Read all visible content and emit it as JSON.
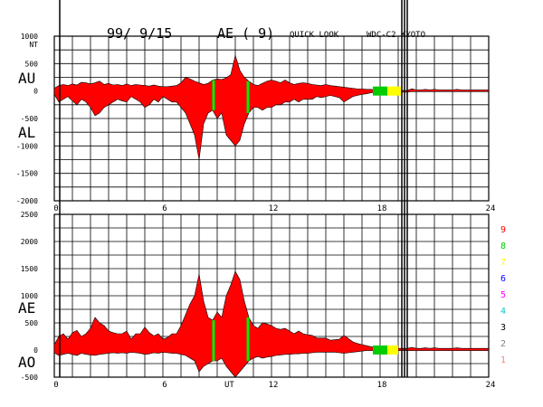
{
  "header": {
    "date": "99/ 9/15",
    "index": "AE ( 9)",
    "mode": "QUICK LOOK",
    "source": "WDC-C2 KYOTO"
  },
  "activity_scale": {
    "labels": [
      "9",
      "8",
      "7",
      "6",
      "5",
      "4",
      "3",
      "2",
      "1"
    ],
    "colors": [
      "#ff0000",
      "#00cc00",
      "#ffff00",
      "#0000ff",
      "#ff00ff",
      "#00cccc",
      "#000000",
      "#808080",
      "#ff8080"
    ]
  },
  "chart_data": [
    {
      "type": "area",
      "panel": "upper",
      "unit": "NT",
      "series_labels": [
        "AU",
        "AL"
      ],
      "ylim": [
        -2000,
        1000
      ],
      "yticks": [
        1000,
        500,
        0,
        -500,
        -1000,
        -1500,
        -2000
      ],
      "ytick_labels": [
        "1000",
        "500",
        "0",
        "-500",
        "-1000",
        "-1500",
        "-2000"
      ],
      "xlim": [
        0,
        24
      ],
      "xticks": [
        0,
        6,
        12,
        18,
        24
      ],
      "xtick_labels": [
        "0",
        "6",
        "12",
        "18",
        "24"
      ],
      "grid": true,
      "fill_color": "#ff0000",
      "x": [
        0.0,
        0.25,
        0.5,
        0.75,
        1.0,
        1.25,
        1.5,
        1.75,
        2.0,
        2.25,
        2.5,
        2.75,
        3.0,
        3.25,
        3.5,
        3.75,
        4.0,
        4.25,
        4.5,
        4.75,
        5.0,
        5.25,
        5.5,
        5.75,
        6.0,
        6.25,
        6.5,
        6.75,
        7.0,
        7.25,
        7.5,
        7.75,
        8.0,
        8.25,
        8.5,
        8.75,
        9.0,
        9.25,
        9.5,
        9.75,
        10.0,
        10.25,
        10.5,
        10.75,
        11.0,
        11.25,
        11.5,
        11.75,
        12.0,
        12.25,
        12.5,
        12.75,
        13.0,
        13.25,
        13.5,
        13.75,
        14.0,
        14.25,
        14.5,
        14.75,
        15.0,
        15.25,
        15.5,
        15.75,
        16.0,
        16.25,
        16.5,
        16.75,
        17.0,
        17.25,
        17.5,
        17.75,
        18.0,
        18.25,
        18.5,
        18.75,
        19.0,
        19.25,
        19.5,
        19.75,
        20.0,
        20.25,
        20.5,
        20.75,
        21.0,
        21.25,
        21.5,
        21.75,
        22.0,
        22.25,
        22.5,
        22.75,
        23.0,
        23.25,
        23.5,
        23.75,
        24.0
      ],
      "upper": [
        50,
        100,
        120,
        100,
        130,
        110,
        160,
        150,
        130,
        150,
        180,
        120,
        140,
        110,
        120,
        100,
        130,
        100,
        120,
        110,
        100,
        90,
        110,
        90,
        80,
        80,
        90,
        100,
        150,
        250,
        220,
        180,
        150,
        120,
        140,
        200,
        220,
        210,
        240,
        300,
        650,
        380,
        250,
        180,
        120,
        100,
        140,
        180,
        200,
        180,
        150,
        200,
        150,
        120,
        140,
        150,
        140,
        120,
        110,
        100,
        120,
        100,
        90,
        80,
        70,
        60,
        50,
        40,
        40,
        30,
        30,
        20,
        20,
        10,
        10,
        10,
        10,
        10,
        10,
        40,
        20,
        20,
        30,
        20,
        30,
        20,
        20,
        20,
        20,
        30,
        20,
        20,
        20,
        20,
        20,
        20,
        20
      ],
      "lower": [
        -60,
        -200,
        -150,
        -100,
        -180,
        -250,
        -150,
        -200,
        -300,
        -450,
        -400,
        -300,
        -250,
        -200,
        -150,
        -180,
        -200,
        -100,
        -150,
        -200,
        -300,
        -250,
        -150,
        -200,
        -100,
        -150,
        -200,
        -200,
        -300,
        -400,
        -600,
        -800,
        -1250,
        -600,
        -400,
        -350,
        -500,
        -400,
        -800,
        -900,
        -1000,
        -900,
        -600,
        -400,
        -300,
        -300,
        -350,
        -300,
        -300,
        -250,
        -250,
        -200,
        -200,
        -150,
        -200,
        -150,
        -150,
        -150,
        -100,
        -120,
        -100,
        -80,
        -100,
        -120,
        -200,
        -150,
        -100,
        -80,
        -60,
        -50,
        -30,
        -30,
        -20,
        -20,
        -20,
        -20,
        -20,
        -20,
        -20,
        -10,
        -10,
        -10,
        -10,
        -10,
        -10,
        -10,
        -10,
        -10,
        -10,
        -10,
        -10,
        -10,
        -10,
        -10,
        -10,
        -10,
        -10
      ]
    },
    {
      "type": "area",
      "panel": "lower",
      "unit": "",
      "series_labels": [
        "AE",
        "AO"
      ],
      "ylim": [
        -500,
        2500
      ],
      "yticks": [
        2500,
        2000,
        1500,
        1000,
        500,
        0,
        -500
      ],
      "ytick_labels": [
        "2500",
        "2000",
        "1500",
        "1000",
        "500",
        "0",
        "-500"
      ],
      "xlim": [
        0,
        24
      ],
      "xticks": [
        0,
        6,
        12,
        18,
        24
      ],
      "xtick_labels": [
        "0",
        "6",
        "12",
        "18",
        "24"
      ],
      "xlabel": "UT",
      "grid": true,
      "fill_color": "#ff0000",
      "x": [
        0.0,
        0.25,
        0.5,
        0.75,
        1.0,
        1.25,
        1.5,
        1.75,
        2.0,
        2.25,
        2.5,
        2.75,
        3.0,
        3.25,
        3.5,
        3.75,
        4.0,
        4.25,
        4.5,
        4.75,
        5.0,
        5.25,
        5.5,
        5.75,
        6.0,
        6.25,
        6.5,
        6.75,
        7.0,
        7.25,
        7.5,
        7.75,
        8.0,
        8.25,
        8.5,
        8.75,
        9.0,
        9.25,
        9.5,
        9.75,
        10.0,
        10.25,
        10.5,
        10.75,
        11.0,
        11.25,
        11.5,
        11.75,
        12.0,
        12.25,
        12.5,
        12.75,
        13.0,
        13.25,
        13.5,
        13.75,
        14.0,
        14.25,
        14.5,
        14.75,
        15.0,
        15.25,
        15.5,
        15.75,
        16.0,
        16.25,
        16.5,
        16.75,
        17.0,
        17.25,
        17.5,
        17.75,
        18.0,
        18.25,
        18.5,
        18.75,
        19.0,
        19.25,
        19.5,
        19.75,
        20.0,
        20.25,
        20.5,
        20.75,
        21.0,
        21.25,
        21.5,
        21.75,
        22.0,
        22.25,
        22.5,
        22.75,
        23.0,
        23.25,
        23.5,
        23.75,
        24.0
      ],
      "upper": [
        100,
        250,
        300,
        200,
        320,
        360,
        250,
        300,
        400,
        600,
        500,
        450,
        350,
        320,
        300,
        300,
        350,
        200,
        300,
        300,
        420,
        320,
        260,
        300,
        200,
        230,
        300,
        300,
        450,
        650,
        850,
        1000,
        1400,
        900,
        600,
        550,
        700,
        600,
        1000,
        1200,
        1450,
        1300,
        900,
        600,
        450,
        400,
        500,
        480,
        450,
        400,
        380,
        400,
        350,
        300,
        350,
        300,
        280,
        270,
        220,
        220,
        220,
        180,
        190,
        200,
        270,
        210,
        150,
        120,
        100,
        80,
        60,
        50,
        40,
        30,
        30,
        30,
        30,
        30,
        30,
        50,
        30,
        30,
        40,
        30,
        40,
        30,
        30,
        30,
        30,
        40,
        30,
        30,
        30,
        30,
        30,
        30,
        30
      ],
      "lower": [
        -50,
        -100,
        -80,
        -60,
        -80,
        -100,
        -60,
        -80,
        -90,
        -100,
        -80,
        -70,
        -60,
        -50,
        -60,
        -50,
        -60,
        -40,
        -50,
        -60,
        -80,
        -70,
        -50,
        -60,
        -40,
        -50,
        -60,
        -60,
        -80,
        -100,
        -150,
        -200,
        -400,
        -300,
        -250,
        -200,
        -200,
        -150,
        -300,
        -400,
        -500,
        -400,
        -300,
        -200,
        -150,
        -120,
        -150,
        -130,
        -120,
        -100,
        -90,
        -80,
        -80,
        -70,
        -70,
        -60,
        -60,
        -50,
        -40,
        -40,
        -40,
        -40,
        -40,
        -50,
        -60,
        -50,
        -40,
        -30,
        -20,
        -10,
        -10,
        -10,
        -10,
        -10,
        -10,
        -10,
        -10,
        -10,
        -10,
        -10,
        -10,
        -10,
        -10,
        -10,
        -10,
        -10,
        -10,
        -10,
        -10,
        -10,
        -10,
        -10,
        -10,
        -10,
        -10,
        -10,
        -10
      ],
      "markers": [
        {
          "x_start": 17.6,
          "x_end": 18.4,
          "color": "#00cc00"
        },
        {
          "x_start": 18.4,
          "x_end": 19.0,
          "color": "#ffff00"
        }
      ]
    }
  ],
  "green_markers": [
    8.8,
    10.7
  ],
  "vertical_lines": [
    0.3,
    19.2,
    19.35,
    19.5
  ],
  "upper_markers": [
    {
      "x_start": 17.6,
      "x_end": 18.4,
      "color": "#00cc00"
    },
    {
      "x_start": 18.4,
      "x_end": 19.2,
      "color": "#ffff00"
    }
  ]
}
